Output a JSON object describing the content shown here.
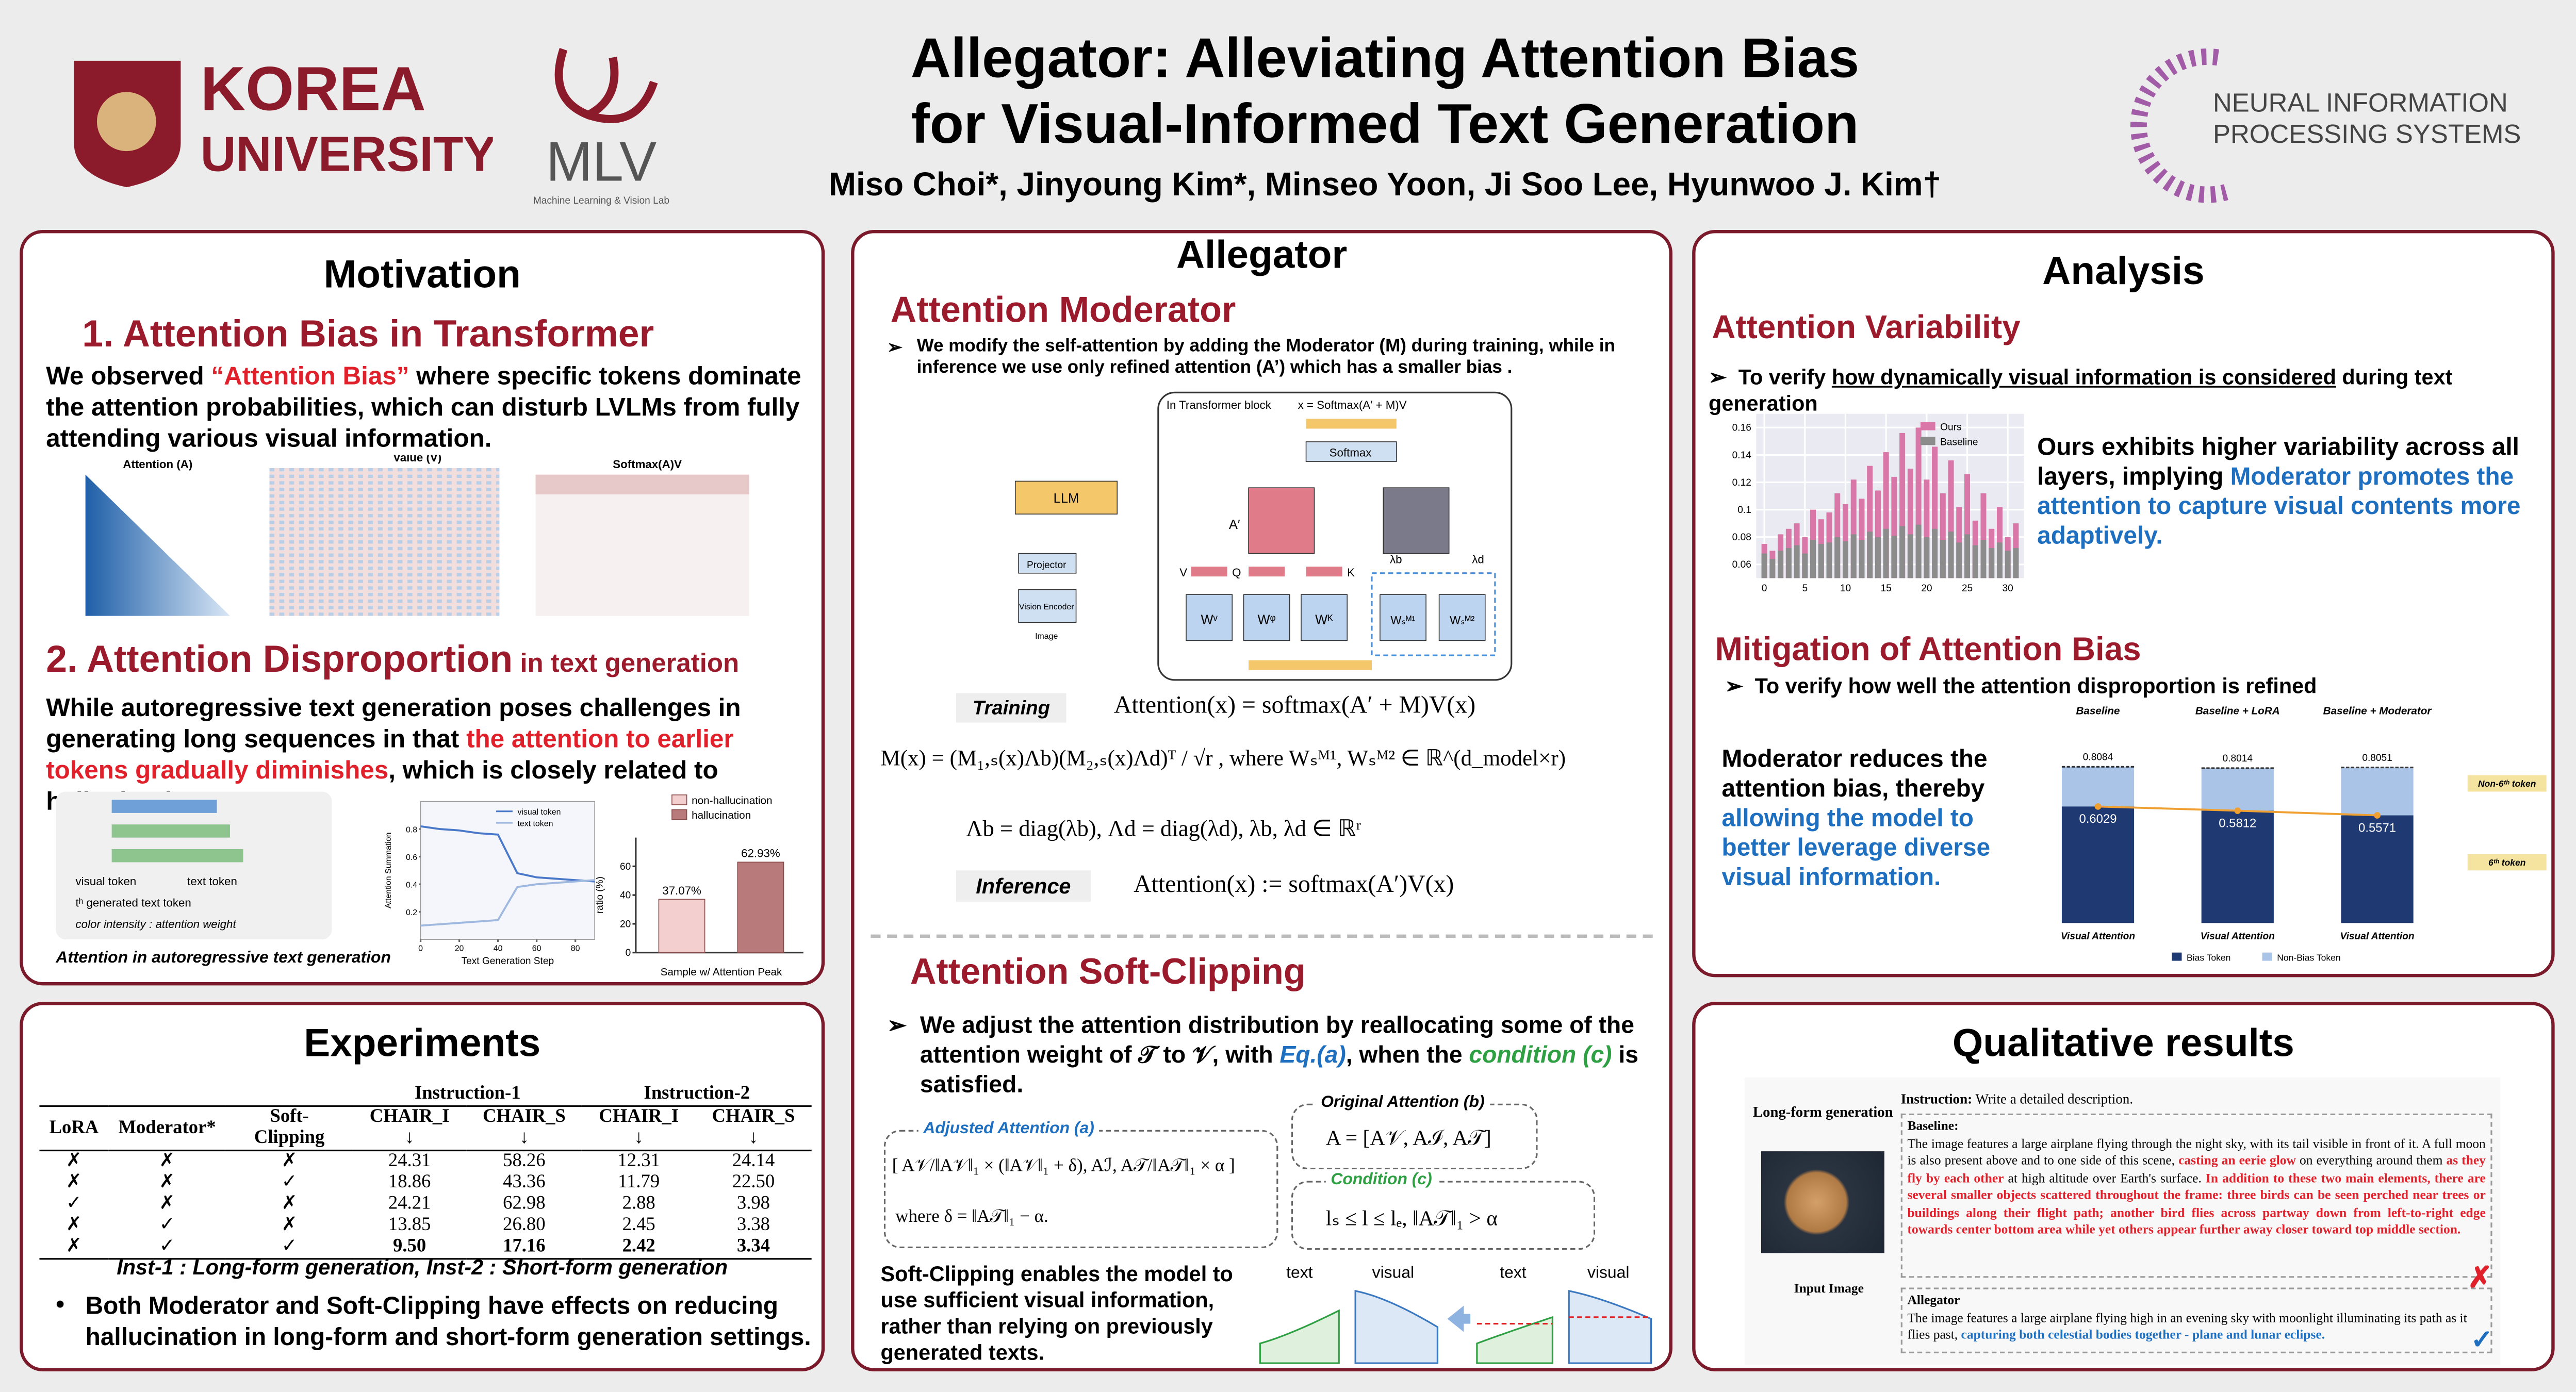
{
  "header": {
    "title_line1": "Allegator: Alleviating Attention Bias",
    "title_line2": "for Visual-Informed Text Generation",
    "authors": "Miso Choi*, Jinyoung Kim*, Minseo Yoon, Ji Soo Lee, Hyunwoo J. Kim†",
    "korea": [
      "KOREA",
      "UNIVERSITY"
    ],
    "mlv": "MLV",
    "mlv_sub": "Machine Learning & Vision Lab",
    "neurips": [
      "NEURAL INFORMATION",
      "PROCESSING SYSTEMS"
    ]
  },
  "motivation": {
    "title": "Motivation",
    "s1_title": "1. Attention Bias in Transformer",
    "s1_text": [
      "We observed ",
      "“Attention Bias”",
      " where specific tokens dominate the attention probabilities, which can disturb LVLMs from fully attending various visual information."
    ],
    "heatmaps": [
      "Attention (A)",
      "Value (V)",
      "Softmax(A)V"
    ],
    "s2_title": "2. Attention Disproportion",
    "s2_suffix": " in text generation",
    "s2_text": [
      "While autoregressive text generation poses challenges in generating long sequences in that ",
      "the attention to earlier tokens gradually diminishes",
      ", which is closely related to hallucination."
    ],
    "fig_labels": [
      "visual token",
      "text token",
      "tʰ generated text token",
      "color intensity : attention weight"
    ],
    "fig_caption": "Attention in autoregressive text generation",
    "line_chart": {
      "xlabel": "Text Generation Step",
      "ylabel": "Attention Summation",
      "x": [
        0,
        10,
        20,
        30,
        40,
        50,
        60,
        70,
        80,
        90
      ],
      "series": [
        {
          "name": "visual token",
          "color": "#4a78c8",
          "values": [
            0.82,
            0.8,
            0.79,
            0.77,
            0.76,
            0.48,
            0.45,
            0.44,
            0.43,
            0.42
          ]
        },
        {
          "name": "text token",
          "color": "#9fb8e0",
          "values": [
            0.1,
            0.11,
            0.12,
            0.13,
            0.14,
            0.38,
            0.4,
            0.41,
            0.42,
            0.43
          ]
        }
      ],
      "xlim": [
        0,
        90
      ],
      "ylim": [
        0,
        1
      ],
      "xticks": [
        0,
        20,
        40,
        60,
        80
      ],
      "yticks": [
        0.2,
        0.4,
        0.6,
        0.8
      ]
    },
    "bar_chart": {
      "categories": [
        "non-hallucination",
        "hallucination"
      ],
      "colors": [
        "#f3cfd0",
        "#b87a7a"
      ],
      "values": [
        37.07,
        62.93
      ],
      "value_labels": [
        "37.07%",
        "62.93%"
      ],
      "xlabel": "Sample w/ Attention Peak",
      "ylabel": "ratio (%)",
      "ylim": [
        0,
        80
      ],
      "yticks": [
        0,
        20,
        40,
        60
      ]
    }
  },
  "experiments": {
    "title": "Experiments",
    "groups": [
      "Instruction-1",
      "Instruction-2"
    ],
    "columns": [
      "LoRA",
      "Moderator*",
      "Soft-Clipping",
      "CHAIR_I ↓",
      "CHAIR_S ↓",
      "CHAIR_I ↓",
      "CHAIR_S ↓"
    ],
    "rows": [
      [
        "✗",
        "✗",
        "✗",
        "24.31",
        "58.26",
        "12.31",
        "24.14"
      ],
      [
        "✗",
        "✗",
        "✓",
        "18.86",
        "43.36",
        "11.79",
        "22.50"
      ],
      [
        "✓",
        "✗",
        "✗",
        "24.21",
        "62.98",
        "2.88",
        "3.98"
      ],
      [
        "✗",
        "✓",
        "✗",
        "13.85",
        "26.80",
        "2.45",
        "3.38"
      ],
      [
        "✗",
        "✓",
        "✓",
        "9.50",
        "17.16",
        "2.42",
        "3.34"
      ]
    ],
    "caption": "Inst-1 : Long-form generation, Inst-2 : Short-form generation",
    "bullet": "Both Moderator and Soft-Clipping have effects on reducing hallucination in long-form and short-form generation settings."
  },
  "allegator": {
    "title": "Allegator",
    "mod_title": "Attention Moderator",
    "mod_bullet": "We modify the self-attention by adding the Moderator (M) during training, while in inference we use only refined attention (A’) which has a smaller bias .",
    "diagram": [
      "In Transformer block",
      "x = Softmax(A′ + M)V",
      "Softmax",
      "LLM",
      "Projector",
      "Vision Encoder",
      "Image",
      "A′",
      "V",
      "Q",
      "K",
      "Wᵛ",
      "Wᵠ",
      "Wᴷ",
      "Wₛᴹ¹",
      "Wₛᴹ²",
      "λb",
      "λd"
    ],
    "training_label": "Training",
    "eq_training": "Attention(x) = softmax(A′ + M)V(x)",
    "eq_m": "M(x) = (M₁,ₛ(x)Λb)(M₂,ₛ(x)Λd)ᵀ / √r ,  where  Wₛᴹ¹, Wₛᴹ²  ∈  ℝ^(d_model×r)",
    "eq_lambda": "Λb = diag(λb),  Λd = diag(λd),  λb, λd ∈ ℝʳ",
    "inference_label": "Inference",
    "eq_inference": "Attention(x) := softmax(A′)V(x)",
    "sc_title": "Attention Soft-Clipping",
    "sc_bullet": [
      "We adjust the attention distribution by reallocating some of the attention weight of ",
      "𝒯",
      " to ",
      "𝒱",
      ", with ",
      "Eq.(a)",
      ", when the ",
      "condition (c)",
      " is satisfied."
    ],
    "box_a_label": "Adjusted Attention (a)",
    "box_a": "[ A𝒱/‖A𝒱‖₁ × (‖A𝒱‖₁ + δ),  Aℐ,  A𝒯/‖A𝒯‖₁ × α ]",
    "box_a_where": "where   δ = ‖A𝒯‖₁ − α.",
    "box_b_label": "Original Attention (b)",
    "box_b": "A = [A𝒱, Aℐ, A𝒯]",
    "box_c_label": "Condition (c)",
    "box_c": "lₛ ≤ l ≤ lₑ,   ‖A𝒯‖₁ > α",
    "sc_text": "Soft-Clipping enables the model to use sufficient visual information, rather than relying on previously generated texts.",
    "mini_labels": [
      "text",
      "visual",
      "text",
      "visual"
    ]
  },
  "analysis": {
    "title": "Analysis",
    "var_title": "Attention Variability",
    "var_bullet": [
      "To verify ",
      "how dynamically visual information is considered",
      " during text generation"
    ],
    "var_chart": {
      "type": "bar",
      "series": [
        {
          "name": "Ours",
          "color": "#d877a8",
          "values": [
            0.075,
            0.07,
            0.082,
            0.086,
            0.09,
            0.08,
            0.1,
            0.093,
            0.098,
            0.112,
            0.104,
            0.122,
            0.108,
            0.132,
            0.114,
            0.142,
            0.124,
            0.156,
            0.13,
            0.16,
            0.122,
            0.146,
            0.112,
            0.136,
            0.102,
            0.126,
            0.092,
            0.112,
            0.086,
            0.102,
            0.08,
            0.09
          ]
        },
        {
          "name": "Baseline",
          "color": "#8c8c8c",
          "values": [
            0.068,
            0.064,
            0.07,
            0.072,
            0.074,
            0.068,
            0.078,
            0.075,
            0.076,
            0.08,
            0.077,
            0.082,
            0.078,
            0.084,
            0.08,
            0.086,
            0.081,
            0.088,
            0.082,
            0.089,
            0.08,
            0.086,
            0.078,
            0.084,
            0.076,
            0.082,
            0.074,
            0.078,
            0.072,
            0.076,
            0.07,
            0.072
          ]
        }
      ],
      "xlim": [
        -1,
        32
      ],
      "ylim": [
        0.05,
        0.17
      ],
      "xticks": [
        0,
        5,
        10,
        15,
        20,
        25,
        30
      ],
      "yticks": [
        0.06,
        0.08,
        0.1,
        0.12,
        0.14,
        0.16
      ]
    },
    "var_text": [
      "Ours exhibits higher variability across all layers, implying ",
      "Moderator promotes the attention to capture visual contents more adaptively."
    ],
    "mit_title": "Mitigation of Attention Bias",
    "mit_bullet": "To verify how well the attention disproportion is refined",
    "mit_chart": {
      "groups": [
        "Baseline",
        "Baseline + LoRA",
        "Baseline + Moderator"
      ],
      "xlabel": "Visual Attention",
      "total": [
        0.8084,
        0.8014,
        0.8051
      ],
      "bias": [
        0.6029,
        0.5812,
        0.5571
      ],
      "ylim": [
        0,
        0.85
      ],
      "colors": [
        "#1f3a73",
        "#a9c4e6"
      ],
      "legend": [
        "Bias Token",
        "Non-Bias Token"
      ],
      "annotations": [
        "Non-6ᵗʰ token",
        "6ᵗʰ token"
      ]
    },
    "mit_text": [
      "Moderator reduces the attention bias, thereby ",
      "allowing the model to better leverage diverse visual information."
    ]
  },
  "qualitative": {
    "title": "Qualitative results",
    "task": "Long-form generation",
    "input": "Input Image",
    "instruction_label": "Instruction:",
    "instruction": " Write a detailed description.",
    "baseline_label": "Baseline:",
    "baseline": [
      "The image features a large airplane flying through the night sky, with its tail visible in front of it. A full moon is also present above and to one side of this scene, ",
      "casting an eerie glow",
      " on everything around them ",
      "as they fly by each other",
      " at high altitude over Earth's surface. ",
      "In addition to these two main elements, there are several smaller objects scattered throughout the frame: three birds can be seen perched near trees or buildings along their flight path; another bird flies across partway down from left-to-right edge towards center bottom area while yet others appear further away closer toward top middle section."
    ],
    "allegator_label": "Allegator",
    "allegator": [
      "The image features a large airplane flying high in an evening sky with moonlight illuminating its path as it flies past, ",
      "capturing both celestial bodies together - plane and lunar eclipse."
    ]
  }
}
